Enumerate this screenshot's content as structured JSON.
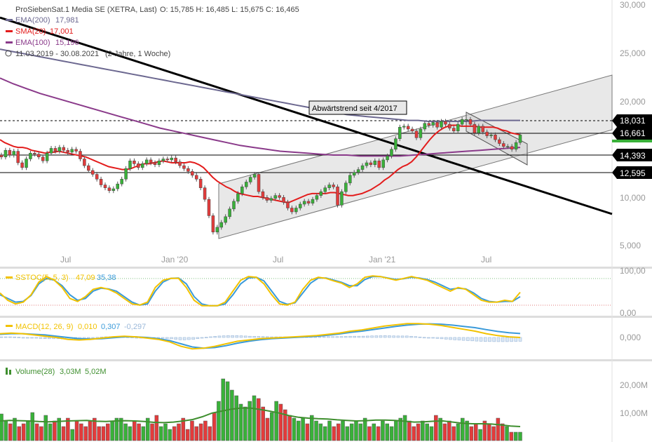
{
  "header": {
    "title": "ProSiebenSat.1 Media SE (XETRA, Last)",
    "ohlc": "O: 15,785   H: 16,485   L: 15,675   C: 16,465",
    "legend": [
      {
        "label": "EMA(200)",
        "value": "17,981",
        "color": "#6c6890"
      },
      {
        "label": "SMA(20)",
        "value": "17,001",
        "color": "#e31c1c"
      },
      {
        "label": "EMA(100)",
        "value": "15,196",
        "color": "#8a3a8a"
      }
    ],
    "range": "11.03.2019 - 30.08.2021",
    "range_note": "(2 Jahre, 1 Woche)"
  },
  "annotation": "Abwärtstrend seit 4/2017",
  "price_badges": [
    {
      "value": "18,031"
    },
    {
      "value": "16,661"
    },
    {
      "value": "14,393"
    },
    {
      "value": "12,595"
    }
  ],
  "x_ticks": [
    "Jul",
    "Jan '20",
    "Jul",
    "Jan '21",
    "Jul"
  ],
  "sstoc": {
    "label": "SSTOC(5, 5, 3)",
    "v1": "47,09",
    "v2": "35,38",
    "c1": "#f2c200",
    "c2": "#3a9ad9"
  },
  "macd": {
    "label": "MACD(12, 26, 9)",
    "v1": "0,010",
    "v2": "0,307",
    "v3": "-0,297",
    "c1": "#f2c200",
    "c2": "#3a9ad9",
    "c3": "#9bb8d9"
  },
  "volume": {
    "label": "Volume(28)",
    "v1": "3,03M",
    "v2": "5,02M",
    "c2": "#3f8f2f"
  },
  "colors": {
    "up": "#39b139",
    "down": "#e33b3b",
    "sma": "#e31c1c",
    "ema200": "#6c6890",
    "ema100": "#8a3a8a"
  },
  "chart_data": [
    {
      "type": "candlestick",
      "title": "ProSiebenSat.1 Media SE (XETRA, Last)",
      "y_ticks": [
        "30,000",
        "25,000",
        "20,000",
        "15,000",
        "10,000",
        "5,000"
      ],
      "ylim": [
        3.5,
        30.5
      ],
      "x_ticks": [
        "Jul",
        "Jan '20",
        "Jul",
        "Jan '21",
        "Jul"
      ],
      "close": [
        14.2,
        14.9,
        14.4,
        14.8,
        13.6,
        13.1,
        14.0,
        14.6,
        14.5,
        14.2,
        13.8,
        14.6,
        15.1,
        14.8,
        15.2,
        14.9,
        14.7,
        15.0,
        14.8,
        14.0,
        13.3,
        12.8,
        12.4,
        11.9,
        11.3,
        11.0,
        10.7,
        10.9,
        11.4,
        11.9,
        13.0,
        13.8,
        13.5,
        13.1,
        13.5,
        13.9,
        13.6,
        13.4,
        13.8,
        14.0,
        13.9,
        14.1,
        13.7,
        13.3,
        13.0,
        12.7,
        12.3,
        11.9,
        11.0,
        9.8,
        8.1,
        6.4,
        6.9,
        7.4,
        8.0,
        8.8,
        9.6,
        10.4,
        11.1,
        11.6,
        12.1,
        12.4,
        10.6,
        10.0,
        9.7,
        9.9,
        10.2,
        10.0,
        9.5,
        8.9,
        8.5,
        8.9,
        9.3,
        9.6,
        9.4,
        9.8,
        10.2,
        10.6,
        11.0,
        11.3,
        11.1,
        9.2,
        10.6,
        11.5,
        12.3,
        12.6,
        12.9,
        13.3,
        13.6,
        13.4,
        13.8,
        13.1,
        13.9,
        14.3,
        15.0,
        16.1,
        17.3,
        17.4,
        17.1,
        16.9,
        16.2,
        17.1,
        17.7,
        17.5,
        17.8,
        17.3,
        17.9,
        17.6,
        17.2,
        16.9,
        17.6,
        18.1,
        18.1,
        17.6,
        16.7,
        17.4,
        16.8,
        16.4,
        16.5,
        16.0,
        15.6,
        15.3,
        15.3,
        15.0,
        15.7,
        16.5
      ],
      "sma20": [
        16.0,
        15.7,
        15.5,
        15.3,
        15.2,
        15.2,
        15.1,
        14.9,
        14.8,
        14.7,
        14.6,
        14.7,
        14.7,
        14.8,
        14.7,
        14.6,
        14.5,
        14.4,
        14.3,
        14.2,
        14.0,
        13.8,
        13.6,
        13.4,
        13.2,
        13.1,
        13.0,
        12.9,
        12.9,
        13.0,
        13.2,
        13.4,
        13.5,
        13.5,
        13.6,
        13.7,
        13.8,
        13.7,
        13.6,
        13.6,
        13.6,
        13.6,
        13.7,
        13.6,
        13.4,
        13.1,
        12.6,
        12.1,
        11.7,
        11.4,
        11.1,
        10.9,
        10.6,
        10.4,
        10.3,
        10.2,
        10.1,
        10.1,
        10.0,
        9.9,
        9.8,
        9.7,
        9.6,
        9.5,
        9.5,
        9.7,
        9.9,
        10.1,
        10.3,
        10.4,
        10.4,
        10.4,
        10.4,
        10.5,
        10.5,
        10.4,
        10.3,
        10.2,
        10.2,
        10.3,
        10.4,
        10.6,
        10.8,
        11.1,
        11.4,
        11.8,
        12.1,
        12.5,
        12.9,
        13.2,
        13.4,
        13.7,
        14.2,
        14.8,
        15.4,
        16.0,
        16.5,
        16.9,
        17.2,
        17.4,
        17.5,
        17.5,
        17.4,
        17.4,
        17.4,
        17.4,
        17.3,
        17.3,
        17.3,
        17.3,
        17.2,
        17.0,
        16.9,
        16.7,
        16.6,
        16.5
      ],
      "ema200": [
        25.4,
        25.2,
        25.0,
        24.8,
        24.6,
        24.4,
        24.2,
        24.0,
        23.8,
        23.6,
        23.4,
        23.2,
        23.0,
        22.8,
        22.6,
        22.4,
        22.2,
        22.0,
        21.8,
        21.6,
        21.4,
        21.2,
        21.0,
        20.8,
        20.6,
        20.4,
        20.2,
        20.0,
        19.8,
        19.6,
        19.4,
        19.2,
        19.0,
        18.8,
        18.6,
        18.5,
        18.4,
        18.3,
        18.2,
        18.1,
        18.0,
        18.0,
        17.9,
        17.9,
        17.9,
        17.9,
        17.9,
        18.0,
        18.0,
        18.0,
        18.0,
        18.0
      ],
      "ema100": [
        22.4,
        21.8,
        21.3,
        20.8,
        20.4,
        20.0,
        19.6,
        19.2,
        18.8,
        18.4,
        18.0,
        17.6,
        17.2,
        16.9,
        16.6,
        16.3,
        16.0,
        15.7,
        15.4,
        15.2,
        15.0,
        14.8,
        14.7,
        14.6,
        14.5,
        14.4,
        14.4,
        14.3,
        14.3,
        14.3,
        14.3,
        14.4,
        14.5,
        14.6,
        14.7,
        14.8,
        14.9,
        15.0,
        15.1,
        15.2
      ]
    },
    {
      "type": "line",
      "title": "SSTOC(5, 5, 3)",
      "y_ticks": [
        "100,00",
        "0,00"
      ],
      "series": [
        {
          "name": "47,09",
          "values": [
            45,
            25,
            15,
            20,
            40,
            75,
            90,
            80,
            60,
            30,
            22,
            35,
            55,
            60,
            55,
            45,
            30,
            15,
            12,
            20,
            60,
            80,
            85,
            85,
            60,
            25,
            10,
            10,
            10,
            20,
            50,
            80,
            90,
            88,
            70,
            40,
            15,
            12,
            20,
            55,
            80,
            88,
            85,
            78,
            72,
            60,
            70,
            88,
            92,
            90,
            85,
            80,
            85,
            90,
            85,
            80,
            70,
            60,
            50,
            60,
            55,
            40,
            25,
            20,
            20,
            25,
            22,
            47
          ]
        },
        {
          "name": "35,38",
          "values": [
            40,
            30,
            20,
            22,
            38,
            70,
            85,
            80,
            65,
            40,
            25,
            30,
            50,
            58,
            56,
            50,
            35,
            20,
            12,
            15,
            50,
            75,
            85,
            86,
            70,
            35,
            15,
            10,
            10,
            15,
            40,
            70,
            86,
            88,
            78,
            50,
            22,
            14,
            18,
            45,
            72,
            86,
            86,
            80,
            74,
            65,
            65,
            82,
            90,
            90,
            86,
            82,
            84,
            88,
            86,
            82,
            75,
            65,
            55,
            58,
            56,
            45,
            30,
            22,
            20,
            22,
            22,
            35
          ]
        }
      ]
    },
    {
      "type": "line",
      "title": "MACD(12, 26, 9)",
      "y_ticks": [
        "0,000"
      ],
      "series": [
        {
          "name": "0,010",
          "values": [
            0.3,
            0.35,
            0.3,
            0.2,
            0.1,
            0.0,
            -0.15,
            -0.2,
            -0.15,
            -0.05,
            0.05,
            0.1,
            0.05,
            -0.05,
            -0.15,
            -0.35,
            -0.7,
            -0.9,
            -0.85,
            -0.7,
            -0.5,
            -0.3,
            -0.2,
            -0.1,
            -0.05,
            0.0,
            0.05,
            0.1,
            0.15,
            0.25,
            0.35,
            0.5,
            0.6,
            0.75,
            0.9,
            1.0,
            1.1,
            1.1,
            1.05,
            0.95,
            0.8,
            0.65,
            0.5,
            0.3,
            0.15,
            0.05,
            0.0
          ]
        },
        {
          "name": "0,307",
          "values": [
            0.25,
            0.3,
            0.3,
            0.25,
            0.2,
            0.1,
            0.0,
            -0.1,
            -0.12,
            -0.1,
            -0.02,
            0.05,
            0.05,
            0.0,
            -0.1,
            -0.25,
            -0.5,
            -0.75,
            -0.85,
            -0.8,
            -0.65,
            -0.45,
            -0.3,
            -0.18,
            -0.1,
            -0.05,
            0.0,
            0.05,
            0.1,
            0.18,
            0.28,
            0.4,
            0.5,
            0.62,
            0.75,
            0.88,
            0.98,
            1.05,
            1.08,
            1.05,
            0.98,
            0.88,
            0.78,
            0.62,
            0.48,
            0.38,
            0.31
          ]
        },
        {
          "name": "-0,297",
          "values": [
            0.05,
            0.05,
            0.0,
            -0.05,
            -0.1,
            -0.1,
            -0.15,
            -0.1,
            -0.03,
            0.05,
            0.07,
            0.05,
            0.0,
            -0.05,
            -0.05,
            -0.1,
            -0.2,
            -0.15,
            0.0,
            0.1,
            0.15,
            0.15,
            0.1,
            0.08,
            0.05,
            0.05,
            0.05,
            0.05,
            0.05,
            0.07,
            0.07,
            0.1,
            0.1,
            0.13,
            0.15,
            0.12,
            0.12,
            0.05,
            -0.03,
            -0.1,
            -0.18,
            -0.23,
            -0.28,
            -0.32,
            -0.33,
            -0.33,
            -0.3
          ]
        }
      ]
    },
    {
      "type": "bar",
      "title": "Volume(28)",
      "y_ticks": [
        "20,00M",
        "10,00M"
      ],
      "values": [
        9.5,
        7,
        6,
        8,
        5,
        6,
        7,
        10,
        6,
        5,
        9,
        6,
        7,
        8,
        5,
        8,
        4,
        7,
        6,
        5,
        7,
        8,
        5,
        5,
        6,
        7,
        8,
        8,
        6,
        5,
        7,
        6,
        5,
        8,
        6,
        9,
        5,
        6,
        4,
        5,
        6,
        8,
        4,
        7,
        5,
        6,
        7,
        5,
        10,
        14,
        22,
        21,
        18,
        16,
        13,
        12,
        14,
        16,
        15,
        12,
        8,
        10,
        14,
        13,
        11,
        9,
        8,
        7,
        8,
        6,
        9,
        7,
        6,
        5,
        7,
        5,
        6,
        7,
        5,
        6,
        7,
        6,
        8,
        5,
        6,
        5,
        7,
        6,
        5,
        7,
        8,
        9,
        7,
        5,
        6,
        7,
        6,
        5,
        9,
        8,
        6,
        7,
        5,
        6,
        8,
        7,
        5,
        6,
        4,
        7,
        6,
        5,
        8,
        6,
        5,
        3,
        3,
        3
      ],
      "series": [
        {
          "name": "5,02M",
          "values": [
            7,
            7.2,
            7.1,
            7.0,
            6.8,
            6.7,
            6.8,
            7.0,
            7.1,
            7.2,
            6.9,
            6.8,
            7.0,
            7.1,
            7.0,
            6.8,
            6.5,
            6.4,
            6.6,
            7.0,
            7.5,
            8.5,
            9.8,
            10.5,
            11.2,
            11.6,
            11.6,
            11.1,
            10.5,
            9.8,
            8.9,
            8.3,
            8.0,
            7.8,
            7.7,
            7.4,
            7.2,
            7.0,
            7.1,
            7.3,
            7.3,
            7.2,
            6.9,
            6.6,
            6.7,
            6.9,
            7.0,
            6.6,
            6.2,
            6.0,
            6.0,
            5.9,
            5.6,
            5.2,
            5.0
          ]
        }
      ]
    }
  ]
}
